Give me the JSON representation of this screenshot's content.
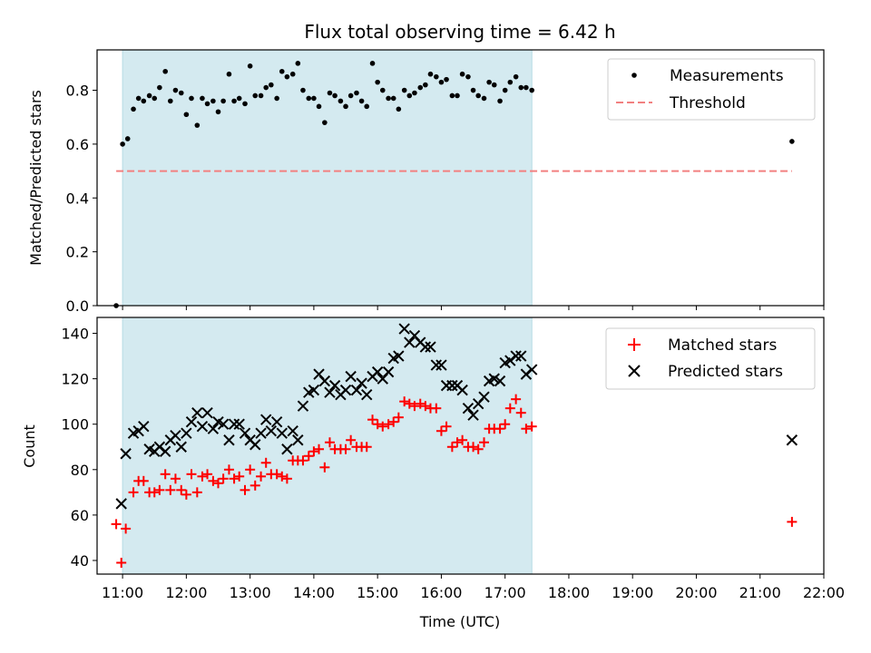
{
  "chart_data": [
    {
      "type": "scatter",
      "panel": "top",
      "title": "Flux total observing time = 6.42 h",
      "xlabel": "",
      "ylabel": "Matched/Predicted stars",
      "xlim": [
        10.6,
        22.0
      ],
      "ylim": [
        0.0,
        0.95
      ],
      "yticks": [
        0.0,
        0.2,
        0.4,
        0.6,
        0.8
      ],
      "ytick_labels": [
        "0.0",
        "0.2",
        "0.4",
        "0.6",
        "0.8"
      ],
      "shaded_span": [
        11.0,
        17.42
      ],
      "shaded_color": "#d4eaf0",
      "legend_position": "top-right",
      "legend": [
        {
          "label": "Measurements",
          "marker": "dot",
          "color": "#000000"
        },
        {
          "label": "Threshold",
          "marker": "dashed-line",
          "color": "#f28080"
        }
      ],
      "threshold": {
        "y": 0.5,
        "x_range": [
          10.9,
          21.5
        ]
      },
      "series": [
        {
          "name": "Measurements",
          "color": "#000000",
          "x": [
            10.9,
            11.0,
            11.08,
            11.17,
            11.25,
            11.33,
            11.42,
            11.5,
            11.58,
            11.67,
            11.75,
            11.83,
            11.92,
            12.0,
            12.08,
            12.17,
            12.25,
            12.33,
            12.42,
            12.5,
            12.58,
            12.67,
            12.75,
            12.83,
            12.92,
            13.0,
            13.08,
            13.17,
            13.25,
            13.33,
            13.42,
            13.5,
            13.58,
            13.67,
            13.75,
            13.83,
            13.92,
            14.0,
            14.08,
            14.17,
            14.25,
            14.33,
            14.42,
            14.5,
            14.58,
            14.67,
            14.75,
            14.83,
            14.92,
            15.0,
            15.08,
            15.17,
            15.25,
            15.33,
            15.42,
            15.5,
            15.58,
            15.67,
            15.75,
            15.83,
            15.92,
            16.0,
            16.08,
            16.17,
            16.25,
            16.33,
            16.42,
            16.5,
            16.58,
            16.67,
            16.75,
            16.83,
            16.92,
            17.0,
            17.08,
            17.17,
            17.25,
            17.33,
            17.42,
            21.5
          ],
          "y": [
            0.0,
            0.6,
            0.62,
            0.73,
            0.77,
            0.76,
            0.78,
            0.77,
            0.81,
            0.87,
            0.76,
            0.8,
            0.79,
            0.71,
            0.77,
            0.67,
            0.77,
            0.75,
            0.76,
            0.72,
            0.76,
            0.86,
            0.76,
            0.77,
            0.75,
            0.89,
            0.78,
            0.78,
            0.81,
            0.82,
            0.77,
            0.87,
            0.85,
            0.86,
            0.9,
            0.8,
            0.77,
            0.77,
            0.74,
            0.68,
            0.79,
            0.78,
            0.76,
            0.74,
            0.78,
            0.79,
            0.76,
            0.74,
            0.9,
            0.83,
            0.8,
            0.77,
            0.77,
            0.73,
            0.8,
            0.78,
            0.79,
            0.81,
            0.82,
            0.86,
            0.85,
            0.83,
            0.84,
            0.78,
            0.78,
            0.86,
            0.85,
            0.8,
            0.78,
            0.77,
            0.83,
            0.82,
            0.76,
            0.8,
            0.83,
            0.85,
            0.81,
            0.81,
            0.8,
            0.61
          ]
        }
      ]
    },
    {
      "type": "scatter",
      "panel": "bottom",
      "xlabel": "Time (UTC)",
      "ylabel": "Count",
      "xlim": [
        10.6,
        22.0
      ],
      "ylim": [
        34,
        147
      ],
      "xticks": [
        11,
        12,
        13,
        14,
        15,
        16,
        17,
        18,
        19,
        20,
        21,
        22
      ],
      "xtick_labels": [
        "11:00",
        "12:00",
        "13:00",
        "14:00",
        "15:00",
        "16:00",
        "17:00",
        "18:00",
        "19:00",
        "20:00",
        "21:00",
        "22:00"
      ],
      "yticks": [
        40,
        60,
        80,
        100,
        120,
        140
      ],
      "ytick_labels": [
        "40",
        "60",
        "80",
        "100",
        "120",
        "140"
      ],
      "shaded_span": [
        11.0,
        17.42
      ],
      "shaded_color": "#d4eaf0",
      "legend_position": "top-right",
      "legend": [
        {
          "label": "Matched stars",
          "marker": "plus",
          "color": "#ff0000"
        },
        {
          "label": "Predicted stars",
          "marker": "x",
          "color": "#000000"
        }
      ],
      "series": [
        {
          "name": "Matched stars",
          "color": "#ff0000",
          "x": [
            10.9,
            10.98,
            11.05,
            11.17,
            11.25,
            11.33,
            11.42,
            11.5,
            11.58,
            11.67,
            11.75,
            11.83,
            11.92,
            12.0,
            12.08,
            12.17,
            12.25,
            12.33,
            12.42,
            12.5,
            12.58,
            12.67,
            12.75,
            12.83,
            12.92,
            13.0,
            13.08,
            13.17,
            13.25,
            13.33,
            13.42,
            13.5,
            13.58,
            13.67,
            13.75,
            13.83,
            13.92,
            14.0,
            14.08,
            14.17,
            14.25,
            14.33,
            14.42,
            14.5,
            14.58,
            14.67,
            14.75,
            14.83,
            14.92,
            15.0,
            15.08,
            15.17,
            15.25,
            15.33,
            15.42,
            15.5,
            15.58,
            15.67,
            15.75,
            15.83,
            15.92,
            16.0,
            16.08,
            16.17,
            16.25,
            16.33,
            16.42,
            16.5,
            16.58,
            16.67,
            16.75,
            16.83,
            16.92,
            17.0,
            17.08,
            17.17,
            17.25,
            17.33,
            17.42,
            21.5
          ],
          "y": [
            56,
            39,
            54,
            70,
            75,
            75,
            70,
            70,
            71,
            78,
            71,
            76,
            71,
            69,
            78,
            70,
            77,
            78,
            75,
            74,
            76,
            80,
            76,
            77,
            71,
            80,
            73,
            77,
            83,
            78,
            78,
            77,
            76,
            84,
            84,
            84,
            86,
            88,
            89,
            81,
            92,
            89,
            89,
            89,
            93,
            90,
            90,
            90,
            102,
            100,
            99,
            100,
            101,
            103,
            110,
            109,
            108,
            109,
            108,
            107,
            107,
            97,
            99,
            90,
            92,
            93,
            90,
            90,
            89,
            92,
            98,
            98,
            98,
            100,
            107,
            111,
            105,
            98,
            99,
            57
          ]
        },
        {
          "name": "Predicted stars",
          "color": "#000000",
          "x": [
            10.98,
            11.05,
            11.17,
            11.25,
            11.33,
            11.42,
            11.5,
            11.58,
            11.67,
            11.75,
            11.83,
            11.92,
            12.0,
            12.08,
            12.17,
            12.25,
            12.33,
            12.42,
            12.5,
            12.58,
            12.67,
            12.75,
            12.83,
            12.92,
            13.0,
            13.08,
            13.17,
            13.25,
            13.33,
            13.42,
            13.5,
            13.58,
            13.67,
            13.75,
            13.83,
            13.92,
            14.0,
            14.08,
            14.17,
            14.25,
            14.33,
            14.42,
            14.5,
            14.58,
            14.67,
            14.75,
            14.83,
            14.92,
            15.0,
            15.08,
            15.17,
            15.25,
            15.33,
            15.42,
            15.5,
            15.58,
            15.67,
            15.75,
            15.83,
            15.92,
            16.0,
            16.08,
            16.17,
            16.25,
            16.33,
            16.42,
            16.5,
            16.58,
            16.67,
            16.75,
            16.83,
            16.92,
            17.0,
            17.08,
            17.17,
            17.25,
            17.33,
            17.42,
            21.5
          ],
          "y": [
            65,
            87,
            96,
            97,
            99,
            89,
            88,
            90,
            88,
            93,
            95,
            90,
            96,
            101,
            105,
            99,
            105,
            98,
            101,
            100,
            93,
            100,
            100,
            96,
            93,
            91,
            96,
            102,
            97,
            101,
            96,
            89,
            97,
            93,
            108,
            114,
            115,
            122,
            119,
            114,
            117,
            113,
            115,
            121,
            115,
            118,
            113,
            121,
            123,
            120,
            123,
            129,
            130,
            142,
            136,
            139,
            136,
            134,
            134,
            126,
            126,
            117,
            117,
            117,
            115,
            107,
            104,
            109,
            112,
            119,
            120,
            119,
            127,
            128,
            130,
            130,
            122,
            124,
            93
          ]
        }
      ]
    }
  ]
}
